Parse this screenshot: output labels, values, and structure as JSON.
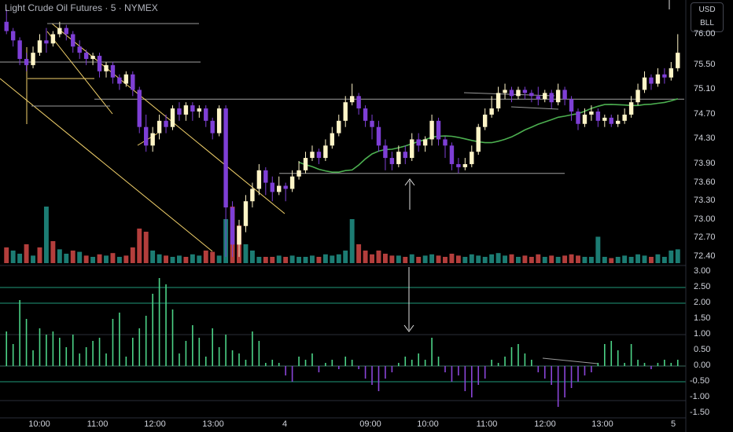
{
  "header": {
    "title": "Light Crude Oil Futures · 5 · NYMEX"
  },
  "currency": {
    "unit": "USD",
    "sub": "BLL"
  },
  "colors": {
    "bg": "#000000",
    "up": "#fff5c7",
    "down": "#7e3fd6",
    "vol_up": "#26a69a",
    "vol_down": "#ef5350",
    "ma": "#4caf50",
    "trend": "#f3d26b",
    "level": "#c8c8c8",
    "hist_up": "#4cd387",
    "hist_down": "#8a45d8",
    "osc_line": "#1f9a7a"
  },
  "price_axis": {
    "labels": [
      "76.00",
      "75.50",
      "75.10",
      "74.70",
      "74.30",
      "73.90",
      "73.60",
      "73.30",
      "73.00",
      "72.70",
      "72.40"
    ]
  },
  "osc_axis": {
    "labels": [
      "3.00",
      "2.50",
      "2.00",
      "1.50",
      "1.00",
      "0.50",
      "0.00",
      "-0.50",
      "-1.00",
      "-1.50"
    ]
  },
  "time_axis": {
    "labels": [
      "10:00",
      "11:00",
      "12:00",
      "13:00",
      "4",
      "09:00",
      "10:00",
      "11:00",
      "12:00",
      "13:00",
      "5"
    ]
  },
  "chart_data": {
    "type": "candlestick",
    "title": "Light Crude Oil Futures · 5 · NYMEX",
    "price_range": [
      72.3,
      76.4
    ],
    "oscillator_range": [
      -1.6,
      3.1
    ],
    "oscillator_levels": [
      2.5,
      2.0,
      0.0,
      -0.5
    ],
    "horizontal_levels": [
      75.55,
      74.95,
      73.75
    ],
    "candles": [
      [
        76.2,
        76.05,
        76.4,
        76.0
      ],
      [
        76.05,
        75.9,
        76.1,
        75.8
      ],
      [
        75.9,
        75.6,
        75.95,
        75.5
      ],
      [
        75.6,
        75.5,
        75.7,
        75.4
      ],
      [
        75.5,
        75.7,
        75.8,
        75.45
      ],
      [
        75.7,
        75.9,
        76.0,
        75.65
      ],
      [
        75.9,
        75.85,
        76.1,
        75.7
      ],
      [
        75.85,
        76.0,
        76.05,
        75.8
      ],
      [
        76.0,
        76.1,
        76.2,
        75.95
      ],
      [
        76.1,
        76.0,
        76.15,
        75.9
      ],
      [
        76.0,
        75.8,
        76.05,
        75.7
      ],
      [
        75.8,
        75.7,
        75.9,
        75.6
      ],
      [
        75.7,
        75.6,
        75.75,
        75.5
      ],
      [
        75.6,
        75.65,
        75.7,
        75.5
      ],
      [
        75.65,
        75.4,
        75.7,
        75.3
      ],
      [
        75.4,
        75.5,
        75.55,
        75.3
      ],
      [
        75.5,
        75.3,
        75.55,
        75.2
      ],
      [
        75.3,
        75.2,
        75.35,
        75.1
      ],
      [
        75.2,
        75.35,
        75.4,
        75.15
      ],
      [
        75.35,
        75.1,
        75.4,
        75.0
      ],
      [
        75.1,
        74.5,
        75.15,
        74.4
      ],
      [
        74.5,
        74.2,
        74.7,
        74.1
      ],
      [
        74.2,
        74.4,
        74.5,
        74.1
      ],
      [
        74.4,
        74.6,
        74.7,
        74.3
      ],
      [
        74.6,
        74.5,
        74.7,
        74.4
      ],
      [
        74.5,
        74.8,
        74.85,
        74.45
      ],
      [
        74.8,
        74.7,
        74.9,
        74.6
      ],
      [
        74.7,
        74.85,
        74.9,
        74.6
      ],
      [
        74.85,
        74.75,
        74.9,
        74.6
      ],
      [
        74.75,
        74.8,
        74.85,
        74.65
      ],
      [
        74.8,
        74.6,
        74.85,
        74.5
      ],
      [
        74.6,
        74.4,
        74.65,
        74.3
      ],
      [
        74.4,
        74.8,
        74.85,
        74.35
      ],
      [
        74.8,
        73.2,
        74.85,
        72.4
      ],
      [
        73.2,
        72.6,
        73.3,
        72.4
      ],
      [
        72.6,
        72.9,
        73.0,
        72.4
      ],
      [
        72.9,
        73.3,
        73.4,
        72.8
      ],
      [
        73.3,
        73.5,
        73.6,
        73.2
      ],
      [
        73.5,
        73.8,
        73.9,
        73.4
      ],
      [
        73.8,
        73.6,
        73.85,
        73.4
      ],
      [
        73.6,
        73.45,
        73.7,
        73.3
      ],
      [
        73.45,
        73.55,
        73.7,
        73.4
      ],
      [
        73.55,
        73.5,
        73.6,
        73.3
      ],
      [
        73.5,
        73.7,
        73.8,
        73.45
      ],
      [
        73.7,
        73.8,
        73.95,
        73.65
      ],
      [
        73.8,
        74.0,
        74.1,
        73.75
      ],
      [
        74.0,
        74.1,
        74.2,
        73.95
      ],
      [
        74.1,
        74.0,
        74.15,
        73.9
      ],
      [
        74.0,
        74.2,
        74.3,
        73.95
      ],
      [
        74.2,
        74.4,
        74.5,
        74.15
      ],
      [
        74.4,
        74.6,
        74.7,
        74.35
      ],
      [
        74.6,
        74.9,
        75.0,
        74.5
      ],
      [
        74.9,
        75.0,
        75.2,
        74.85
      ],
      [
        75.0,
        74.8,
        75.05,
        74.7
      ],
      [
        74.8,
        74.6,
        74.85,
        74.5
      ],
      [
        74.6,
        74.5,
        74.7,
        74.3
      ],
      [
        74.5,
        74.2,
        74.6,
        74.1
      ],
      [
        74.2,
        74.0,
        74.3,
        73.8
      ],
      [
        74.0,
        73.9,
        74.1,
        73.8
      ],
      [
        73.9,
        74.1,
        74.2,
        73.85
      ],
      [
        74.1,
        74.0,
        74.2,
        73.9
      ],
      [
        74.0,
        74.3,
        74.4,
        73.95
      ],
      [
        74.3,
        74.2,
        74.4,
        74.1
      ],
      [
        74.2,
        74.3,
        74.35,
        74.1
      ],
      [
        74.3,
        74.6,
        74.7,
        74.2
      ],
      [
        74.6,
        74.3,
        74.65,
        74.2
      ],
      [
        74.3,
        74.2,
        74.35,
        74.0
      ],
      [
        74.2,
        73.9,
        74.25,
        73.8
      ],
      [
        73.9,
        73.85,
        74.0,
        73.75
      ],
      [
        73.85,
        73.9,
        74.0,
        73.8
      ],
      [
        73.9,
        74.1,
        74.2,
        73.85
      ],
      [
        74.1,
        74.5,
        74.55,
        74.05
      ],
      [
        74.5,
        74.7,
        74.8,
        74.45
      ],
      [
        74.7,
        74.8,
        75.0,
        74.65
      ],
      [
        74.8,
        75.05,
        75.15,
        74.75
      ],
      [
        75.05,
        75.1,
        75.2,
        74.95
      ],
      [
        75.1,
        75.0,
        75.15,
        74.9
      ],
      [
        75.0,
        75.1,
        75.15,
        74.95
      ],
      [
        75.1,
        75.05,
        75.15,
        74.95
      ],
      [
        75.05,
        75.0,
        75.1,
        74.9
      ],
      [
        75.0,
        74.95,
        75.15,
        74.85
      ],
      [
        74.95,
        75.05,
        75.1,
        74.9
      ],
      [
        75.05,
        74.9,
        75.1,
        74.8
      ],
      [
        74.9,
        75.1,
        75.2,
        74.85
      ],
      [
        75.1,
        74.95,
        75.15,
        74.85
      ],
      [
        74.95,
        74.75,
        75.0,
        74.6
      ],
      [
        74.75,
        74.55,
        74.8,
        74.45
      ],
      [
        74.55,
        74.7,
        74.8,
        74.5
      ],
      [
        74.7,
        74.75,
        74.85,
        74.6
      ],
      [
        74.75,
        74.6,
        74.8,
        74.5
      ],
      [
        74.6,
        74.65,
        74.7,
        74.5
      ],
      [
        74.65,
        74.55,
        74.7,
        74.5
      ],
      [
        74.55,
        74.6,
        74.7,
        74.5
      ],
      [
        74.6,
        74.7,
        74.8,
        74.55
      ],
      [
        74.7,
        74.9,
        75.0,
        74.65
      ],
      [
        74.9,
        75.1,
        75.2,
        74.85
      ],
      [
        75.1,
        75.3,
        75.4,
        75.05
      ],
      [
        75.3,
        75.2,
        75.35,
        75.1
      ],
      [
        75.2,
        75.35,
        75.45,
        75.15
      ],
      [
        75.35,
        75.3,
        75.45,
        75.2
      ],
      [
        75.3,
        75.45,
        75.55,
        75.25
      ],
      [
        75.45,
        75.7,
        76.0,
        75.4
      ]
    ],
    "volumes": [
      [
        0.25,
        0
      ],
      [
        0.2,
        1
      ],
      [
        0.15,
        1
      ],
      [
        0.3,
        0
      ],
      [
        0.12,
        1
      ],
      [
        0.25,
        0
      ],
      [
        0.9,
        1
      ],
      [
        0.35,
        0
      ],
      [
        0.22,
        1
      ],
      [
        0.15,
        1
      ],
      [
        0.2,
        0
      ],
      [
        0.18,
        1
      ],
      [
        0.12,
        0
      ],
      [
        0.1,
        1
      ],
      [
        0.14,
        0
      ],
      [
        0.12,
        1
      ],
      [
        0.16,
        0
      ],
      [
        0.1,
        1
      ],
      [
        0.12,
        0
      ],
      [
        0.25,
        0
      ],
      [
        0.55,
        0
      ],
      [
        0.5,
        0
      ],
      [
        0.2,
        1
      ],
      [
        0.14,
        1
      ],
      [
        0.12,
        0
      ],
      [
        0.1,
        1
      ],
      [
        0.12,
        1
      ],
      [
        0.1,
        0
      ],
      [
        0.14,
        1
      ],
      [
        0.12,
        1
      ],
      [
        0.2,
        0
      ],
      [
        0.18,
        0
      ],
      [
        0.12,
        1
      ],
      [
        0.7,
        1
      ],
      [
        0.9,
        0
      ],
      [
        0.6,
        0
      ],
      [
        0.3,
        1
      ],
      [
        0.2,
        1
      ],
      [
        0.1,
        1
      ],
      [
        0.1,
        0
      ],
      [
        0.1,
        0
      ],
      [
        0.12,
        1
      ],
      [
        0.1,
        0
      ],
      [
        0.12,
        1
      ],
      [
        0.1,
        1
      ],
      [
        0.1,
        1
      ],
      [
        0.12,
        1
      ],
      [
        0.1,
        0
      ],
      [
        0.14,
        1
      ],
      [
        0.12,
        1
      ],
      [
        0.14,
        1
      ],
      [
        0.2,
        1
      ],
      [
        0.7,
        1
      ],
      [
        0.3,
        0
      ],
      [
        0.2,
        0
      ],
      [
        0.14,
        0
      ],
      [
        0.2,
        0
      ],
      [
        0.15,
        0
      ],
      [
        0.12,
        0
      ],
      [
        0.12,
        1
      ],
      [
        0.1,
        0
      ],
      [
        0.14,
        1
      ],
      [
        0.1,
        0
      ],
      [
        0.12,
        1
      ],
      [
        0.14,
        1
      ],
      [
        0.12,
        0
      ],
      [
        0.1,
        0
      ],
      [
        0.15,
        0
      ],
      [
        0.12,
        0
      ],
      [
        0.1,
        1
      ],
      [
        0.14,
        1
      ],
      [
        0.12,
        1
      ],
      [
        0.1,
        1
      ],
      [
        0.14,
        1
      ],
      [
        0.16,
        1
      ],
      [
        0.12,
        1
      ],
      [
        0.14,
        0
      ],
      [
        0.1,
        1
      ],
      [
        0.12,
        0
      ],
      [
        0.1,
        0
      ],
      [
        0.14,
        0
      ],
      [
        0.1,
        1
      ],
      [
        0.12,
        0
      ],
      [
        0.1,
        1
      ],
      [
        0.12,
        0
      ],
      [
        0.14,
        0
      ],
      [
        0.12,
        0
      ],
      [
        0.1,
        1
      ],
      [
        0.1,
        1
      ],
      [
        0.42,
        1
      ],
      [
        0.1,
        1
      ],
      [
        0.08,
        0
      ],
      [
        0.1,
        1
      ],
      [
        0.12,
        1
      ],
      [
        0.1,
        1
      ],
      [
        0.14,
        1
      ],
      [
        0.12,
        1
      ],
      [
        0.1,
        0
      ],
      [
        0.14,
        1
      ],
      [
        0.1,
        1
      ],
      [
        0.2,
        1
      ],
      [
        0.22,
        1
      ]
    ],
    "oscillator": [
      1.1,
      0.7,
      2.1,
      1.5,
      0.5,
      1.2,
      1.0,
      1.1,
      0.9,
      0.6,
      1.0,
      0.4,
      0.6,
      0.8,
      0.9,
      0.4,
      1.5,
      1.7,
      0.3,
      0.9,
      1.2,
      1.6,
      2.3,
      2.8,
      2.6,
      1.8,
      0.4,
      0.8,
      1.3,
      0.9,
      0.3,
      1.2,
      0.6,
      1.0,
      0.5,
      0.4,
      0.2,
      1.1,
      0.8,
      0.1,
      0.2,
      0.1,
      -0.3,
      -0.5,
      0.3,
      0.2,
      0.4,
      -0.2,
      0.1,
      0.2,
      -0.1,
      0.3,
      0.2,
      -0.1,
      -0.4,
      -0.6,
      -0.8,
      -0.4,
      -0.2,
      0.1,
      0.3,
      0.2,
      0.4,
      0.2,
      0.9,
      0.3,
      -0.2,
      -0.5,
      -0.3,
      -0.8,
      -1.0,
      -0.6,
      -0.4,
      0.2,
      0.1,
      0.3,
      0.6,
      0.7,
      0.4,
      0.2,
      -0.2,
      -0.4,
      -0.6,
      -1.3,
      -1.0,
      -0.7,
      -0.5,
      -0.3,
      -0.2,
      0.1,
      0.7,
      0.8,
      0.5,
      0.1,
      0.7,
      0.2,
      0.1,
      -0.1,
      0.1,
      0.2,
      0.1,
      0.2
    ]
  }
}
